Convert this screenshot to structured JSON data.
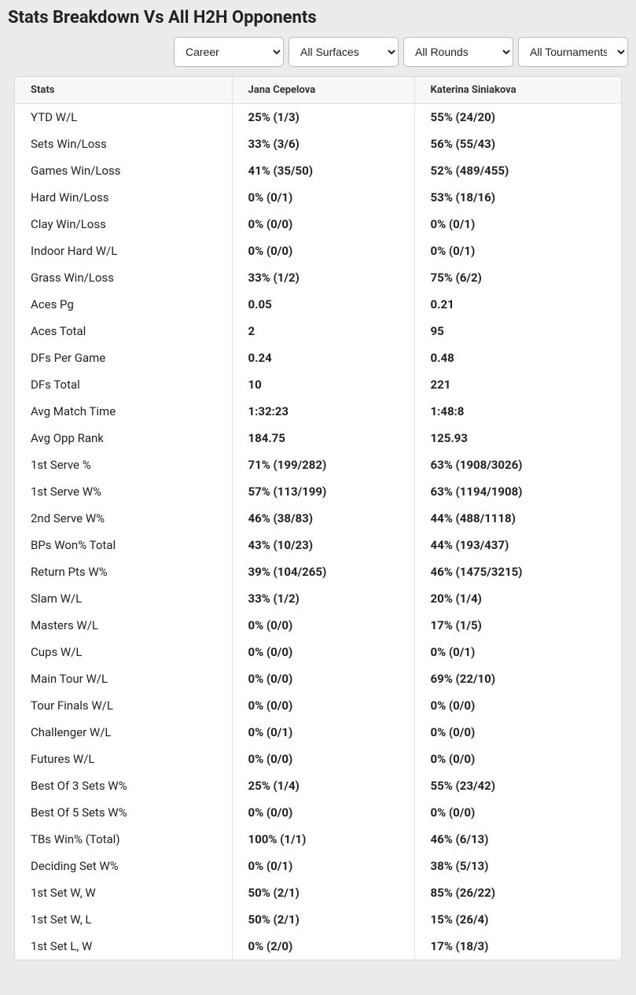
{
  "title": "Stats Breakdown Vs All H2H Opponents",
  "filters": {
    "career": {
      "selected": "Career"
    },
    "surface": {
      "selected": "All Surfaces"
    },
    "round": {
      "selected": "All Rounds"
    },
    "tournament": {
      "selected": "All Tournaments"
    }
  },
  "table": {
    "columns": [
      "Stats",
      "Jana Cepelova",
      "Katerina Siniakova"
    ],
    "rows": [
      [
        "YTD W/L",
        "25% (1/3)",
        "55% (24/20)"
      ],
      [
        "Sets Win/Loss",
        "33% (3/6)",
        "56% (55/43)"
      ],
      [
        "Games Win/Loss",
        "41% (35/50)",
        "52% (489/455)"
      ],
      [
        "Hard Win/Loss",
        "0% (0/1)",
        "53% (18/16)"
      ],
      [
        "Clay Win/Loss",
        "0% (0/0)",
        "0% (0/1)"
      ],
      [
        "Indoor Hard W/L",
        "0% (0/0)",
        "0% (0/1)"
      ],
      [
        "Grass Win/Loss",
        "33% (1/2)",
        "75% (6/2)"
      ],
      [
        "Aces Pg",
        "0.05",
        "0.21"
      ],
      [
        "Aces Total",
        "2",
        "95"
      ],
      [
        "DFs Per Game",
        "0.24",
        "0.48"
      ],
      [
        "DFs Total",
        "10",
        "221"
      ],
      [
        "Avg Match Time",
        "1:32:23",
        "1:48:8"
      ],
      [
        "Avg Opp Rank",
        "184.75",
        "125.93"
      ],
      [
        "1st Serve %",
        "71% (199/282)",
        "63% (1908/3026)"
      ],
      [
        "1st Serve W%",
        "57% (113/199)",
        "63% (1194/1908)"
      ],
      [
        "2nd Serve W%",
        "46% (38/83)",
        "44% (488/1118)"
      ],
      [
        "BPs Won% Total",
        "43% (10/23)",
        "44% (193/437)"
      ],
      [
        "Return Pts W%",
        "39% (104/265)",
        "46% (1475/3215)"
      ],
      [
        "Slam W/L",
        "33% (1/2)",
        "20% (1/4)"
      ],
      [
        "Masters W/L",
        "0% (0/0)",
        "17% (1/5)"
      ],
      [
        "Cups W/L",
        "0% (0/0)",
        "0% (0/1)"
      ],
      [
        "Main Tour W/L",
        "0% (0/0)",
        "69% (22/10)"
      ],
      [
        "Tour Finals W/L",
        "0% (0/0)",
        "0% (0/0)"
      ],
      [
        "Challenger W/L",
        "0% (0/1)",
        "0% (0/0)"
      ],
      [
        "Futures W/L",
        "0% (0/0)",
        "0% (0/0)"
      ],
      [
        "Best Of 3 Sets W%",
        "25% (1/4)",
        "55% (23/42)"
      ],
      [
        "Best Of 5 Sets W%",
        "0% (0/0)",
        "0% (0/0)"
      ],
      [
        "TBs Win% (Total)",
        "100% (1/1)",
        "46% (6/13)"
      ],
      [
        "Deciding Set W%",
        "0% (0/1)",
        "38% (5/13)"
      ],
      [
        "1st Set W, W",
        "50% (2/1)",
        "85% (26/22)"
      ],
      [
        "1st Set W, L",
        "50% (2/1)",
        "15% (26/4)"
      ],
      [
        "1st Set L, W",
        "0% (2/0)",
        "17% (18/3)"
      ]
    ],
    "header_bg": "#f7f7f7",
    "border_color": "#e2e2e2",
    "font_size_header": 13,
    "font_size_body": 15
  },
  "page_bg": "#ebebeb"
}
